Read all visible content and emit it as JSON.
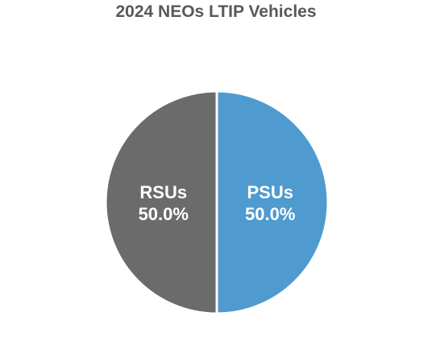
{
  "chart_data": {
    "type": "pie",
    "title": "2024 NEOs LTIP Vehicles",
    "slices": [
      {
        "label": "PSUs",
        "percent_label": "50.0%",
        "value": 50.0,
        "color": "#4F9BCF"
      },
      {
        "label": "RSUs",
        "percent_label": "50.0%",
        "value": 50.0,
        "color": "#6B6B6B"
      }
    ],
    "separator_color": "#FFFFFF",
    "legend": "none"
  }
}
